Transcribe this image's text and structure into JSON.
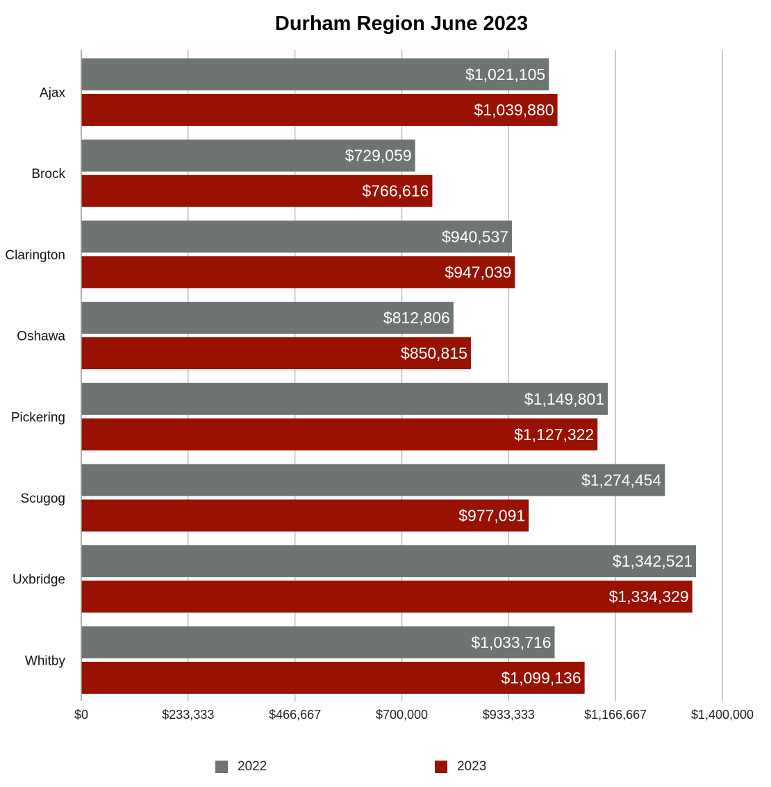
{
  "chart_data": {
    "type": "bar",
    "orientation": "horizontal",
    "title": "Durham Region June 2023",
    "categories": [
      "Ajax",
      "Brock",
      "Clarington",
      "Oshawa",
      "Pickering",
      "Scugog",
      "Uxbridge",
      "Whitby"
    ],
    "series": [
      {
        "name": "2022",
        "color": "#6e7470",
        "values": [
          1021105,
          729059,
          940537,
          812806,
          1149801,
          1274454,
          1342521,
          1033716
        ],
        "labels": [
          "$1,021,105",
          "$729,059",
          "$940,537",
          "$812,806",
          "$1,149,801",
          "$1,274,454",
          "$1,342,521",
          "$1,033,716"
        ]
      },
      {
        "name": "2023",
        "color": "#991100",
        "values": [
          1039880,
          766616,
          947039,
          850815,
          1127322,
          977091,
          1334329,
          1099136
        ],
        "labels": [
          "$1,039,880",
          "$766,616",
          "$947,039",
          "$850,815",
          "$1,127,322",
          "$977,091",
          "$1,334,329",
          "$1,099,136"
        ]
      }
    ],
    "xlim": [
      0,
      1400000
    ],
    "xticks": [
      0,
      233333,
      466667,
      700000,
      933333,
      1166667,
      1400000
    ],
    "xtick_labels": [
      "$0",
      "$233,333",
      "$466,667",
      "$700,000",
      "$933,333",
      "$1,166,667",
      "$1,400,000"
    ],
    "grid": "vertical",
    "legend_position": "bottom",
    "legend": [
      "2022",
      "2023"
    ]
  }
}
